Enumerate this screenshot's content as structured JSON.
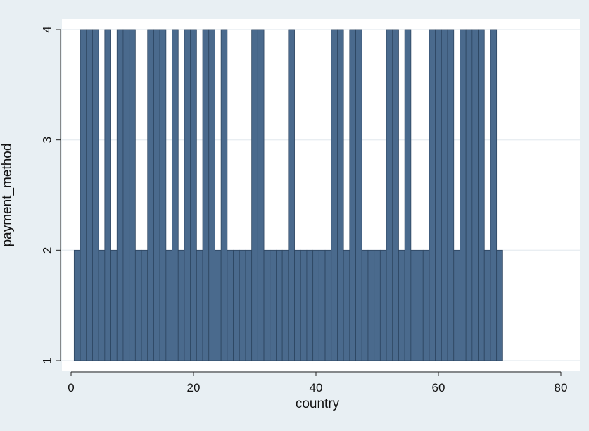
{
  "chart_data": {
    "type": "bar",
    "xlabel": "country",
    "ylabel": "payment_method",
    "xlim": [
      0,
      80
    ],
    "ylim": [
      1,
      4
    ],
    "x_ticks": [
      0,
      20,
      40,
      60,
      80
    ],
    "y_ticks": [
      1,
      2,
      3,
      4
    ],
    "grid": true,
    "legend": "none",
    "bar_base": 1,
    "bar_width": 1,
    "x": [
      1,
      2,
      3,
      4,
      5,
      6,
      7,
      8,
      9,
      10,
      11,
      12,
      13,
      14,
      15,
      16,
      17,
      18,
      19,
      20,
      21,
      22,
      23,
      24,
      25,
      26,
      27,
      28,
      29,
      30,
      31,
      32,
      33,
      34,
      35,
      36,
      37,
      38,
      39,
      40,
      41,
      42,
      43,
      44,
      45,
      46,
      47,
      48,
      49,
      50,
      51,
      52,
      53,
      54,
      55,
      56,
      57,
      58,
      59,
      60,
      61,
      62,
      63,
      64,
      65,
      66,
      67,
      68,
      69,
      70
    ],
    "values": [
      2,
      4,
      4,
      4,
      2,
      4,
      2,
      4,
      4,
      4,
      2,
      2,
      4,
      4,
      4,
      2,
      4,
      2,
      4,
      4,
      2,
      4,
      4,
      2,
      4,
      2,
      2,
      2,
      2,
      4,
      4,
      2,
      2,
      2,
      2,
      4,
      2,
      2,
      2,
      2,
      2,
      2,
      4,
      4,
      2,
      4,
      4,
      2,
      2,
      2,
      2,
      4,
      4,
      2,
      4,
      2,
      2,
      2,
      4,
      4,
      4,
      4,
      2,
      4,
      4,
      4,
      4,
      2,
      4,
      2
    ],
    "colors": {
      "bar_fill": "#4a6a8d",
      "bar_stroke": "#2d4560",
      "plot_background": "#ffffff",
      "outer_background": "#e8eff3",
      "grid": "#e9eef2"
    }
  }
}
